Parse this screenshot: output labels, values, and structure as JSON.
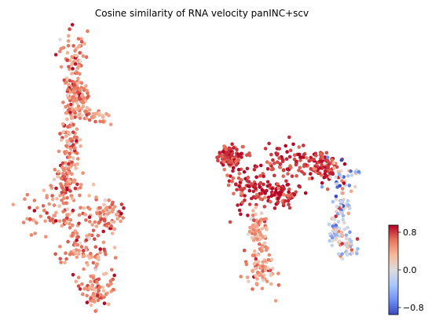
{
  "chart_data": {
    "type": "scatter",
    "title": "Cosine similarity of RNA velocity panINC+scv",
    "xlabel": "",
    "ylabel": "",
    "axes_visible": false,
    "grid": false,
    "legend": "none",
    "colormap": {
      "name": "coolwarm",
      "stops": [
        "#3b4cc0",
        "#6f92f3",
        "#aac7fd",
        "#dddcdc",
        "#f7b89c",
        "#e7745b",
        "#b40426"
      ]
    },
    "colorbar": {
      "location": "right",
      "range": [
        -0.95,
        0.95
      ],
      "ticks": [
        0.8,
        0.0,
        -0.8
      ],
      "tick_labels": [
        "0.8",
        "0.0",
        "−0.8"
      ]
    },
    "x_range": [
      -12,
      12
    ],
    "y_range": [
      -9,
      9
    ],
    "clusters": [
      {
        "points": 120,
        "value_mean": 0.55,
        "value_sd": 0.18,
        "path": [
          [
            -7.9,
            7.5
          ],
          [
            -7.8,
            4.2
          ],
          [
            -8.2,
            0.6
          ],
          [
            -8.6,
            -1.4
          ],
          [
            -8.0,
            -3.5
          ],
          [
            -7.0,
            -5.8
          ],
          [
            -6.2,
            -7.8
          ]
        ]
      },
      {
        "points": 40,
        "value_mean": 0.5,
        "value_sd": 0.16,
        "path": [
          [
            -7.6,
            3.6
          ],
          [
            -6.8,
            3.4
          ],
          [
            -6.2,
            3.3
          ],
          [
            -5.6,
            3.0
          ]
        ]
      },
      {
        "points": 520,
        "value_mean": 0.55,
        "value_sd": 0.2,
        "blobs": [
          {
            "center": [
              -7.9,
              6.8
            ],
            "spread": [
              0.9,
              1.5
            ]
          },
          {
            "center": [
              -7.7,
              4.6
            ],
            "spread": [
              0.8,
              0.9
            ]
          },
          {
            "center": [
              -8.1,
              1.8
            ],
            "spread": [
              0.6,
              1.3
            ]
          },
          {
            "center": [
              -8.3,
              -0.6
            ],
            "spread": [
              0.8,
              0.9
            ]
          },
          {
            "center": [
              -8.7,
              -2.6
            ],
            "spread": [
              2.6,
              1.4
            ]
          },
          {
            "center": [
              -7.3,
              -4.9
            ],
            "spread": [
              1.5,
              1.3
            ]
          },
          {
            "center": [
              -6.4,
              -7.3
            ],
            "spread": [
              1.3,
              1.0
            ]
          },
          {
            "center": [
              -5.7,
              -2.7
            ],
            "spread": [
              0.9,
              1.1
            ]
          }
        ]
      },
      {
        "points": 430,
        "value_mean": 0.82,
        "value_sd": 0.13,
        "blobs": [
          {
            "center": [
              2.3,
              0.9
            ],
            "spread": [
              0.9,
              0.7
            ]
          },
          {
            "center": [
              3.6,
              -1.0
            ],
            "spread": [
              1.3,
              1.3
            ]
          },
          {
            "center": [
              6.4,
              0.5
            ],
            "spread": [
              1.6,
              1.0
            ]
          },
          {
            "center": [
              5.6,
              -1.4
            ],
            "spread": [
              1.0,
              0.8
            ]
          },
          {
            "center": [
              8.5,
              0.3
            ],
            "spread": [
              0.9,
              0.8
            ]
          }
        ]
      },
      {
        "points": 140,
        "value_mean": 0.45,
        "value_sd": 0.22,
        "blobs": [
          {
            "center": [
              4.5,
              -5.8
            ],
            "spread": [
              0.8,
              1.3
            ]
          },
          {
            "center": [
              4.1,
              -3.6
            ],
            "spread": [
              0.6,
              0.9
            ]
          }
        ]
      },
      {
        "points": 160,
        "value_mean": -0.05,
        "value_sd": 0.42,
        "blobs": [
          {
            "center": [
              9.8,
              -0.1
            ],
            "spread": [
              1.0,
              1.1
            ]
          },
          {
            "center": [
              9.6,
              -2.2
            ],
            "spread": [
              0.6,
              1.1
            ]
          },
          {
            "center": [
              10.0,
              -4.6
            ],
            "spread": [
              0.7,
              0.9
            ]
          },
          {
            "center": [
              9.3,
              -3.8
            ],
            "spread": [
              0.5,
              0.5
            ]
          }
        ]
      }
    ]
  }
}
